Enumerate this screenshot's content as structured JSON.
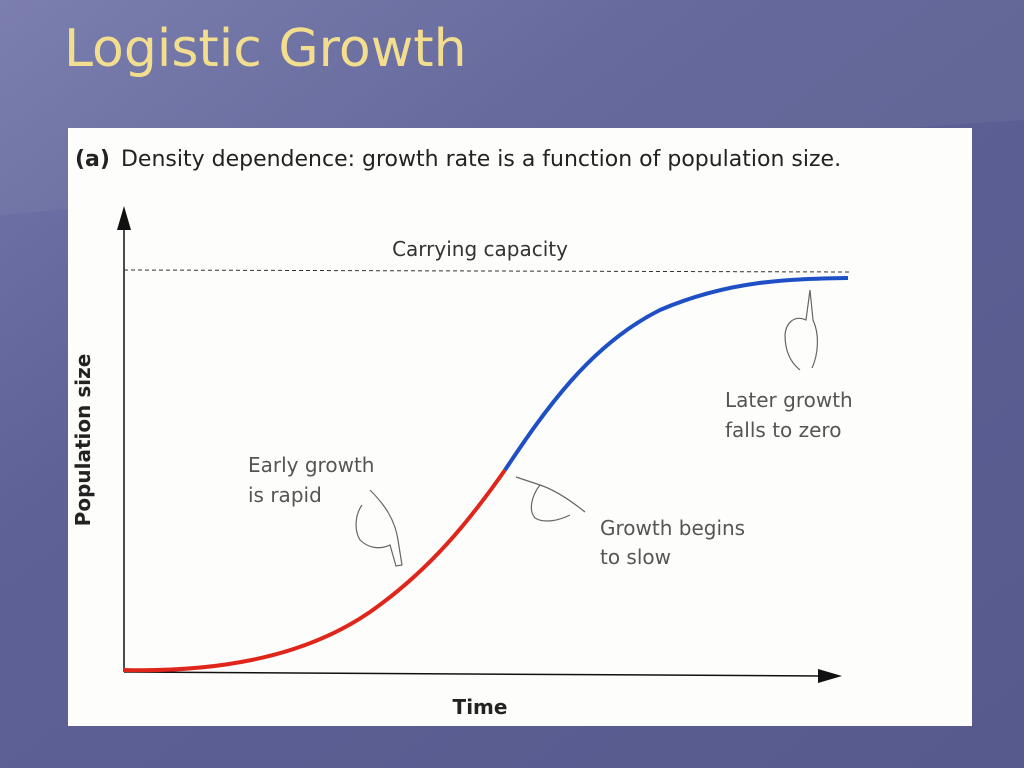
{
  "slide": {
    "title": "Logistic Growth"
  },
  "figure": {
    "caption_label": "(a)",
    "caption": "Density dependence: growth rate is a function of population size.",
    "y_axis": "Population size",
    "x_axis": "Time",
    "carrying_capacity": "Carrying capacity",
    "annotations": [
      {
        "lines": [
          "Early growth",
          "is rapid"
        ]
      },
      {
        "lines": [
          "Growth begins",
          "to slow"
        ]
      },
      {
        "lines": [
          "Later growth",
          "falls to zero"
        ]
      }
    ]
  }
}
